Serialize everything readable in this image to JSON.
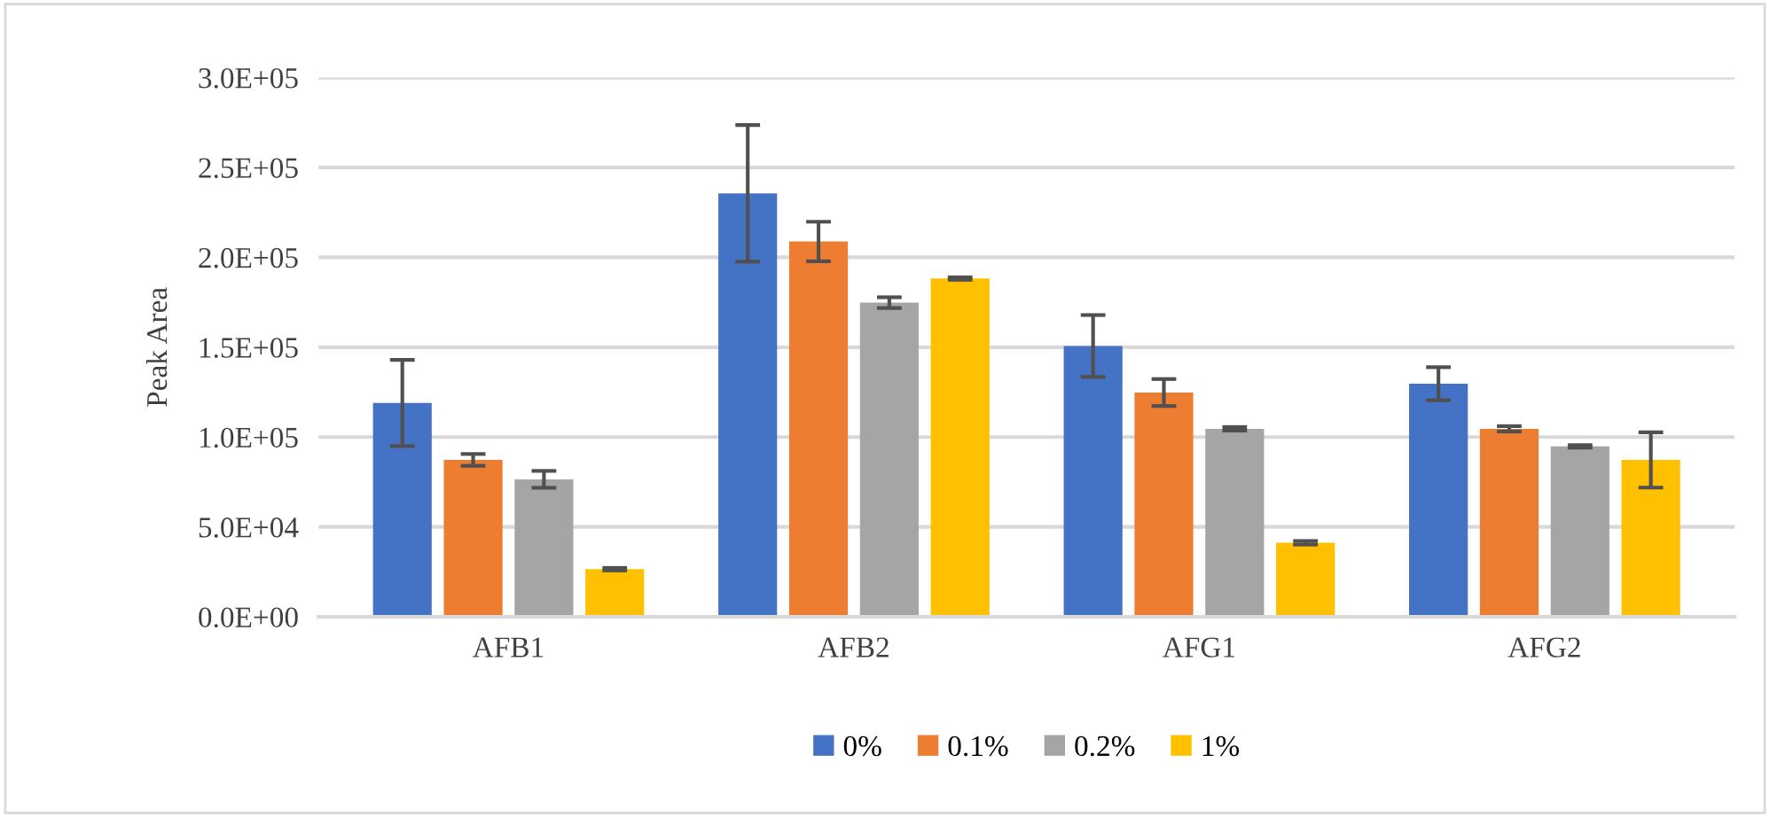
{
  "chart_data": {
    "type": "bar",
    "ylabel": "Peak Area",
    "categories": [
      "AFB1",
      "AFB2",
      "AFG1",
      "AFG2"
    ],
    "series": [
      {
        "name": "0%",
        "color": "#4472c4",
        "values": [
          119000,
          235600,
          150700,
          129700
        ],
        "errors": [
          24000,
          38000,
          17200,
          9200
        ]
      },
      {
        "name": "0.1%",
        "color": "#ed7d31",
        "values": [
          87300,
          208800,
          124800,
          104600
        ],
        "errors": [
          3300,
          11000,
          7500,
          1500
        ]
      },
      {
        "name": "0.2%",
        "color": "#a5a5a5",
        "values": [
          76500,
          174800,
          104600,
          94800
        ],
        "errors": [
          4700,
          3000,
          1000,
          700
        ]
      },
      {
        "name": "1%",
        "color": "#ffc000",
        "values": [
          26500,
          188200,
          41200,
          87300
        ],
        "errors": [
          700,
          700,
          1000,
          15400
        ]
      }
    ],
    "ylim": [
      0,
      300000
    ],
    "yticks": [
      {
        "value": 0,
        "label": "0.0E+00"
      },
      {
        "value": 50000,
        "label": "5.0E+04"
      },
      {
        "value": 100000,
        "label": "1.0E+05"
      },
      {
        "value": 150000,
        "label": "1.5E+05"
      },
      {
        "value": 200000,
        "label": "2.0E+05"
      },
      {
        "value": 250000,
        "label": "2.5E+05"
      },
      {
        "value": 300000,
        "label": "3.0E+05"
      }
    ],
    "grid": "y",
    "legend": "bottom"
  }
}
